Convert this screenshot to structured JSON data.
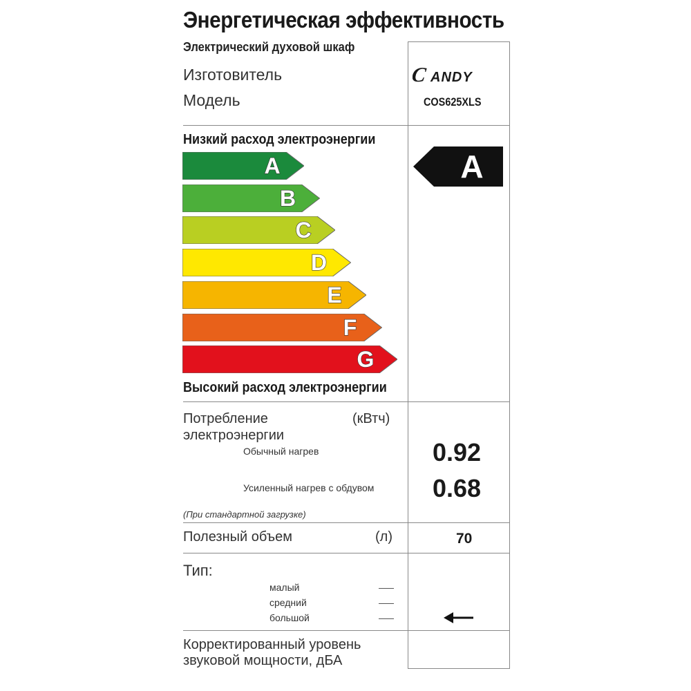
{
  "title": "Энергетическая эффективность",
  "appliance_type": "Электрический духовой шкаф",
  "manufacturer_label": "Изготовитель",
  "model_label": "Модель",
  "manufacturer_logo_text": "CANDY",
  "model_value": "COS625XLS",
  "low_consumption_label": "Низкий расход электроэнергии",
  "high_consumption_label": "Высокий расход электроэнергии",
  "energy_classes": [
    {
      "letter": "A",
      "color": "#1b8a3c"
    },
    {
      "letter": "B",
      "color": "#4caf3a"
    },
    {
      "letter": "C",
      "color": "#b9cf22"
    },
    {
      "letter": "D",
      "color": "#ffe800"
    },
    {
      "letter": "E",
      "color": "#f6b500"
    },
    {
      "letter": "F",
      "color": "#e8611a"
    },
    {
      "letter": "G",
      "color": "#e2111c"
    }
  ],
  "rating": {
    "letter": "A",
    "color": "#111111"
  },
  "consumption": {
    "label_line1": "Потребление",
    "label_line2": "электроэнергии",
    "unit": "(кВтч)",
    "conventional_label": "Обычный нагрев",
    "conventional_value": "0.92",
    "fan_label": "Усиленный нагрев с обдувом",
    "fan_value": "0.68",
    "note": "(При стандартной загрузке)"
  },
  "volume": {
    "label": "Полезный объем",
    "unit": "(л)",
    "value": "70"
  },
  "type": {
    "label": "Тип:",
    "options": [
      "малый",
      "средний",
      "большой"
    ],
    "selected_index": 2
  },
  "noise": {
    "label_line1": "Корректированный уровень",
    "label_line2": "звуковой мощности, дБА"
  }
}
